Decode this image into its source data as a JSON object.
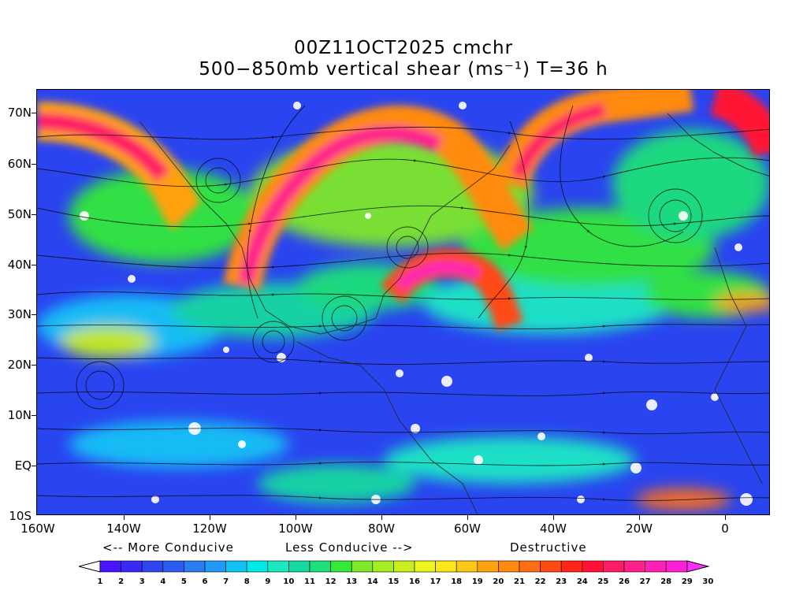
{
  "title": {
    "line1": "00Z11OCT2025 cmchr",
    "line2": "500−850mb vertical shear (ms⁻¹) T=36 h"
  },
  "lat_labels": [
    "70N",
    "60N",
    "50N",
    "40N",
    "30N",
    "20N",
    "10N",
    "EQ",
    "10S"
  ],
  "lon_labels": [
    "160W",
    "140W",
    "120W",
    "100W",
    "80W",
    "60W",
    "40W",
    "20W",
    "0"
  ],
  "legend": {
    "more_conducive": "<-- More Conducive",
    "less_conducive": "Less Conducive -->",
    "destructive": "Destructive",
    "levels": [
      "1",
      "2",
      "3",
      "4",
      "5",
      "6",
      "7",
      "8",
      "9",
      "10",
      "11",
      "12",
      "13",
      "14",
      "15",
      "16",
      "17",
      "18",
      "19",
      "20",
      "21",
      "22",
      "23",
      "24",
      "25",
      "26",
      "27",
      "28",
      "29",
      "30"
    ],
    "colors": [
      "#ffffff",
      "#4a14ff",
      "#3a28f5",
      "#2e46ee",
      "#2a5cf0",
      "#2c7cf2",
      "#1f9af7",
      "#12c2f5",
      "#00eaea",
      "#1de8c4",
      "#16d9a0",
      "#1ee07a",
      "#33e93a",
      "#7ee82a",
      "#a4ed22",
      "#c8f01c",
      "#eef51a",
      "#ffe618",
      "#ffc814",
      "#ffa010",
      "#ff8a10",
      "#ff6e12",
      "#ff4a12",
      "#ff2618",
      "#ff1236",
      "#ff1c66",
      "#ff208c",
      "#ff20b8",
      "#ff1ed8",
      "#ff2cff"
    ]
  }
}
